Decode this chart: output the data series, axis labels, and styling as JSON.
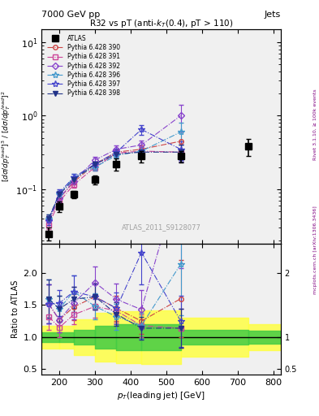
{
  "title_top": "7000 GeV pp",
  "title_top_right": "Jets",
  "plot_title": "R32 vs pT (anti-k_{T}(0.4), pT > 110)",
  "ylabel_main": "[dσ/dp$_T$lead]$^{3}$ / [dσ/dp$_T$lead]$^{2}$",
  "ylabel_ratio": "Ratio to ATLAS",
  "xlabel": "p$_T$(leading jet) [GeV]",
  "watermark": "ATLAS_2011_S9128077",
  "right_label": "Rivet 3.1.10, ≥ 100k events",
  "right_label2": "mcplots.cern.ch [arXiv:1306.3436]",
  "xlim": [
    150,
    820
  ],
  "ylim_main": [
    0.018,
    15.0
  ],
  "ylim_ratio": [
    0.42,
    2.45
  ],
  "atlas_x": [
    170,
    200,
    240,
    300,
    360,
    430,
    540,
    730
  ],
  "atlas_y": [
    0.025,
    0.059,
    0.085,
    0.135,
    0.22,
    0.28,
    0.28,
    0.38
  ],
  "atlas_yerr_lo": [
    0.005,
    0.01,
    0.01,
    0.02,
    0.04,
    0.05,
    0.05,
    0.1
  ],
  "atlas_yerr_hi": [
    0.005,
    0.01,
    0.01,
    0.02,
    0.04,
    0.05,
    0.05,
    0.1
  ],
  "pythia_x": [
    170,
    200,
    240,
    300,
    360,
    430,
    540
  ],
  "p390_y": [
    0.038,
    0.075,
    0.125,
    0.22,
    0.32,
    0.35,
    0.45
  ],
  "p390_yerr": [
    0.005,
    0.008,
    0.01,
    0.02,
    0.03,
    0.04,
    0.15
  ],
  "p391_y": [
    0.033,
    0.068,
    0.115,
    0.2,
    0.31,
    0.33,
    0.32
  ],
  "p391_yerr": [
    0.004,
    0.008,
    0.01,
    0.02,
    0.03,
    0.04,
    0.08
  ],
  "p392_y": [
    0.038,
    0.075,
    0.13,
    0.25,
    0.35,
    0.4,
    1.0
  ],
  "p392_yerr": [
    0.005,
    0.008,
    0.015,
    0.025,
    0.04,
    0.06,
    0.4
  ],
  "p396_y": [
    0.04,
    0.085,
    0.145,
    0.2,
    0.29,
    0.33,
    0.6
  ],
  "p396_yerr": [
    0.005,
    0.01,
    0.015,
    0.02,
    0.03,
    0.04,
    0.2
  ],
  "p397_y": [
    0.038,
    0.09,
    0.145,
    0.22,
    0.32,
    0.65,
    0.35
  ],
  "p397_yerr": [
    0.005,
    0.01,
    0.015,
    0.02,
    0.04,
    0.1,
    0.1
  ],
  "p398_y": [
    0.04,
    0.085,
    0.135,
    0.22,
    0.3,
    0.32,
    0.32
  ],
  "p398_yerr": [
    0.005,
    0.01,
    0.012,
    0.02,
    0.03,
    0.04,
    0.08
  ],
  "ratio390_y": [
    1.52,
    1.27,
    1.47,
    1.63,
    1.45,
    1.25,
    1.6
  ],
  "ratio390_yerr": [
    0.3,
    0.2,
    0.2,
    0.2,
    0.2,
    0.2,
    0.6
  ],
  "ratio391_y": [
    1.32,
    1.15,
    1.35,
    1.48,
    1.41,
    1.18,
    1.14
  ],
  "ratio391_yerr": [
    0.2,
    0.15,
    0.15,
    0.18,
    0.18,
    0.18,
    0.3
  ],
  "ratio392_y": [
    1.52,
    1.27,
    1.53,
    1.85,
    1.59,
    1.43,
    3.57
  ],
  "ratio392_yerr": [
    0.3,
    0.2,
    0.25,
    0.25,
    0.25,
    0.3,
    1.5
  ],
  "ratio396_y": [
    1.6,
    1.44,
    1.71,
    1.48,
    1.32,
    1.18,
    2.14
  ],
  "ratio396_yerr": [
    0.3,
    0.2,
    0.25,
    0.2,
    0.2,
    0.2,
    0.8
  ],
  "ratio397_y": [
    1.52,
    1.53,
    1.71,
    1.63,
    1.45,
    2.32,
    1.25
  ],
  "ratio397_yerr": [
    0.3,
    0.2,
    0.25,
    0.2,
    0.25,
    0.5,
    0.4
  ],
  "ratio398_y": [
    1.6,
    1.44,
    1.59,
    1.63,
    1.36,
    1.14,
    1.14
  ],
  "ratio398_yerr": [
    0.3,
    0.2,
    0.2,
    0.2,
    0.18,
    0.18,
    0.3
  ],
  "err_band_x": [
    150,
    200,
    240,
    300,
    360,
    430,
    540,
    730,
    820
  ],
  "green_lo": [
    0.92,
    0.92,
    0.88,
    0.82,
    0.8,
    0.8,
    0.88,
    0.9,
    0.9
  ],
  "green_hi": [
    1.08,
    1.08,
    1.12,
    1.18,
    1.2,
    1.2,
    1.12,
    1.1,
    1.1
  ],
  "yellow_lo": [
    0.82,
    0.82,
    0.72,
    0.62,
    0.6,
    0.58,
    0.7,
    0.8,
    0.8
  ],
  "yellow_hi": [
    1.18,
    1.18,
    1.28,
    1.38,
    1.4,
    1.42,
    1.3,
    1.2,
    1.2
  ],
  "color_390": "#cc4444",
  "color_391": "#cc4499",
  "color_392": "#8844cc",
  "color_396": "#4499cc",
  "color_397": "#4444cc",
  "color_398": "#223388",
  "bg_color": "#f0f0f0"
}
